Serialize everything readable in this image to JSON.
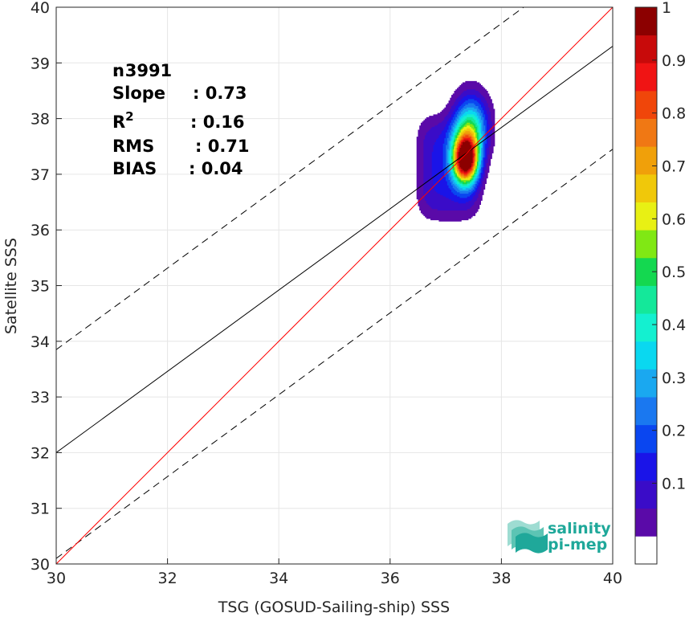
{
  "chart_data": {
    "type": "heatmap",
    "title": "",
    "xlabel": "TSG (GOSUD-Sailing-ship) SSS",
    "ylabel": "Satellite SSS",
    "xlim": [
      30,
      40
    ],
    "ylim": [
      30,
      40
    ],
    "xticks": [
      "30",
      "32",
      "34",
      "36",
      "38",
      "40"
    ],
    "yticks": [
      "30",
      "31",
      "32",
      "33",
      "34",
      "35",
      "36",
      "37",
      "38",
      "39",
      "40"
    ],
    "grid": true,
    "stats": [
      {
        "label": "n",
        "sep": ": ",
        "value": "3991"
      },
      {
        "label": "Slope",
        "sep": ": ",
        "value": "0.73"
      },
      {
        "label": "R",
        "sup": "2",
        "sep": ": ",
        "value": "0.16"
      },
      {
        "label": "RMS",
        "sep": ": ",
        "value": "0.71"
      },
      {
        "label": "BIAS",
        "sep": ": ",
        "value": "0.04"
      }
    ],
    "lines": {
      "one_to_one": {
        "x": [
          30,
          40
        ],
        "y": [
          30,
          40
        ],
        "color": "#ff0000"
      },
      "regression": {
        "x": [
          30,
          40
        ],
        "y": [
          32.0,
          39.3
        ],
        "color": "#000000"
      },
      "upper_bound": {
        "x": [
          30,
          38.4
        ],
        "y": [
          33.85,
          40
        ],
        "color": "#000000",
        "dashed": true
      },
      "lower_bound": {
        "x": [
          30,
          40
        ],
        "y": [
          30.1,
          37.45
        ],
        "color": "#000000",
        "dashed": true
      }
    },
    "density": {
      "peak_x": 37.35,
      "peak_y": 37.25,
      "x_range": [
        36.2,
        37.85
      ],
      "y_range": [
        35.8,
        39.0
      ],
      "max_normalized": 1.0
    },
    "colorbar": {
      "ticks": [
        "0.1",
        "0.2",
        "0.3",
        "0.4",
        "0.5",
        "0.6",
        "0.7",
        "0.8",
        "0.9",
        "1"
      ],
      "colors": [
        "#ffffff",
        "#5a0aa8",
        "#3a0cc8",
        "#1a14e8",
        "#0a46f0",
        "#1a78f0",
        "#1aa8f0",
        "#0ad8f0",
        "#14f0d0",
        "#14e89a",
        "#14d850",
        "#80e814",
        "#e8f014",
        "#f0c80a",
        "#f0a00a",
        "#f07814",
        "#f0460a",
        "#f01414",
        "#c80a0a",
        "#8c0000"
      ]
    }
  },
  "logo": {
    "line1": "salinity",
    "line2": "pi-mep",
    "color": "#1fa89a"
  }
}
